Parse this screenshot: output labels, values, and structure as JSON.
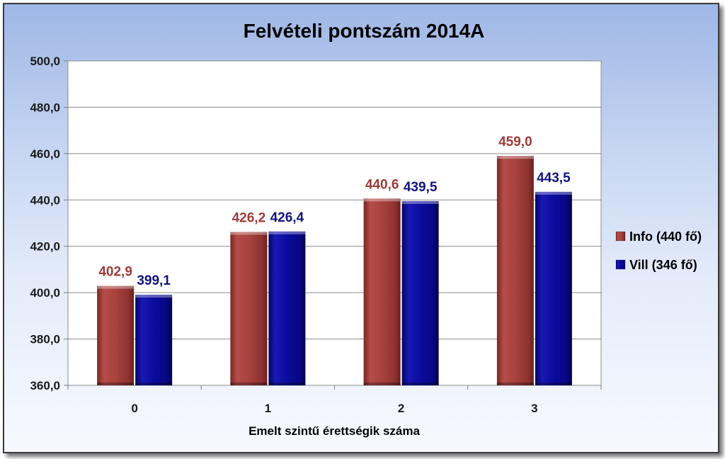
{
  "chart_data": {
    "type": "bar",
    "title": "Felvételi pontszám 2014A",
    "xlabel": "Emelt szintű érettségik száma",
    "ylabel": "",
    "categories": [
      "0",
      "1",
      "2",
      "3"
    ],
    "ylim": [
      360,
      500
    ],
    "yticks": [
      "360,0",
      "380,0",
      "400,0",
      "420,0",
      "440,0",
      "460,0",
      "480,0",
      "500,0"
    ],
    "ytick_values": [
      360,
      380,
      400,
      420,
      440,
      460,
      480,
      500
    ],
    "grid": true,
    "legend_position": "right",
    "series": [
      {
        "name": "Info (440 fő)",
        "color": "#a8423f",
        "values": [
          402.9,
          426.2,
          440.6,
          459.0
        ],
        "labels": [
          "402,9",
          "426,2",
          "440,6",
          "459,0"
        ]
      },
      {
        "name": "Vill (346 fő)",
        "color": "#0b0b9e",
        "values": [
          399.1,
          426.4,
          439.5,
          443.5
        ],
        "labels": [
          "399,1",
          "426,4",
          "439,5",
          "443,5"
        ]
      }
    ]
  },
  "colors": {
    "info_label": "#9e3b38",
    "vill_label": "#121280"
  }
}
